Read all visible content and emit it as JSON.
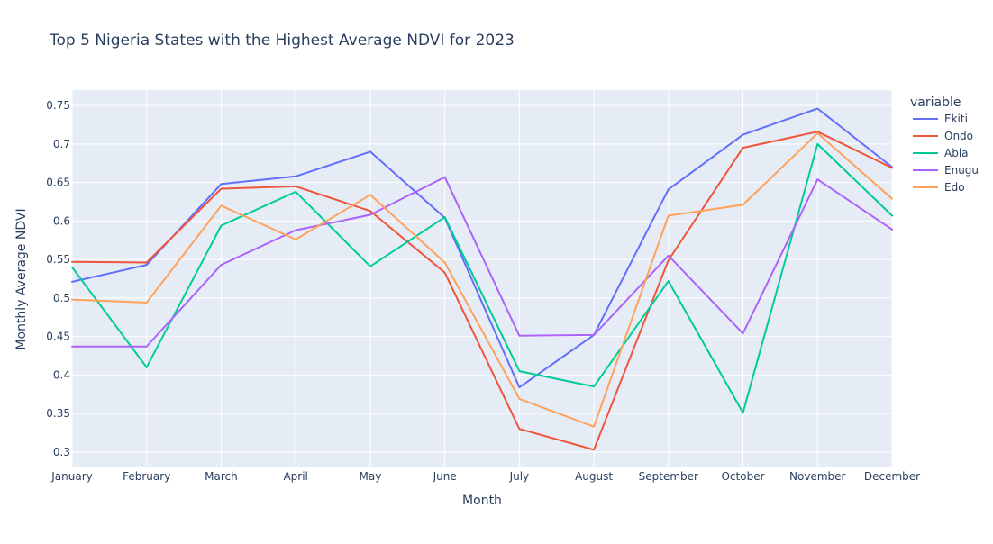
{
  "chart_data": {
    "type": "line",
    "title": "Top 5 Nigeria States with the Highest Average NDVI for 2023",
    "xlabel": "Month",
    "ylabel": "Monthly Average NDVI",
    "ylim": [
      0.28,
      0.77
    ],
    "yticks": [
      0.3,
      0.35,
      0.4,
      0.45,
      0.5,
      0.55,
      0.6,
      0.65,
      0.7,
      0.75
    ],
    "ytick_labels": [
      "0.3",
      "0.35",
      "0.4",
      "0.45",
      "0.5",
      "0.55",
      "0.6",
      "0.65",
      "0.7",
      "0.75"
    ],
    "categories": [
      "January",
      "February",
      "March",
      "April",
      "May",
      "June",
      "July",
      "August",
      "September",
      "October",
      "November",
      "December"
    ],
    "legend_title": "variable",
    "legend_position": "right",
    "grid": true,
    "background": "#e5ecf6",
    "series": [
      {
        "name": "Ekiti",
        "color": "#636efa",
        "values": [
          0.521,
          0.543,
          0.648,
          0.658,
          0.69,
          0.604,
          0.384,
          0.452,
          0.641,
          0.712,
          0.746,
          0.67
        ]
      },
      {
        "name": "Ondo",
        "color": "#ef553b",
        "values": [
          0.547,
          0.546,
          0.642,
          0.645,
          0.613,
          0.533,
          0.33,
          0.303,
          0.549,
          0.695,
          0.716,
          0.669
        ]
      },
      {
        "name": "Abia",
        "color": "#00cc96",
        "values": [
          0.54,
          0.41,
          0.594,
          0.638,
          0.541,
          0.605,
          0.405,
          0.385,
          0.522,
          0.351,
          0.7,
          0.607
        ]
      },
      {
        "name": "Enugu",
        "color": "#ab63fa",
        "values": [
          0.437,
          0.437,
          0.543,
          0.588,
          0.608,
          0.657,
          0.451,
          0.452,
          0.555,
          0.454,
          0.654,
          0.589
        ]
      },
      {
        "name": "Edo",
        "color": "#ffa15a",
        "values": [
          0.498,
          0.494,
          0.62,
          0.576,
          0.634,
          0.546,
          0.369,
          0.333,
          0.607,
          0.621,
          0.714,
          0.629
        ]
      }
    ]
  }
}
